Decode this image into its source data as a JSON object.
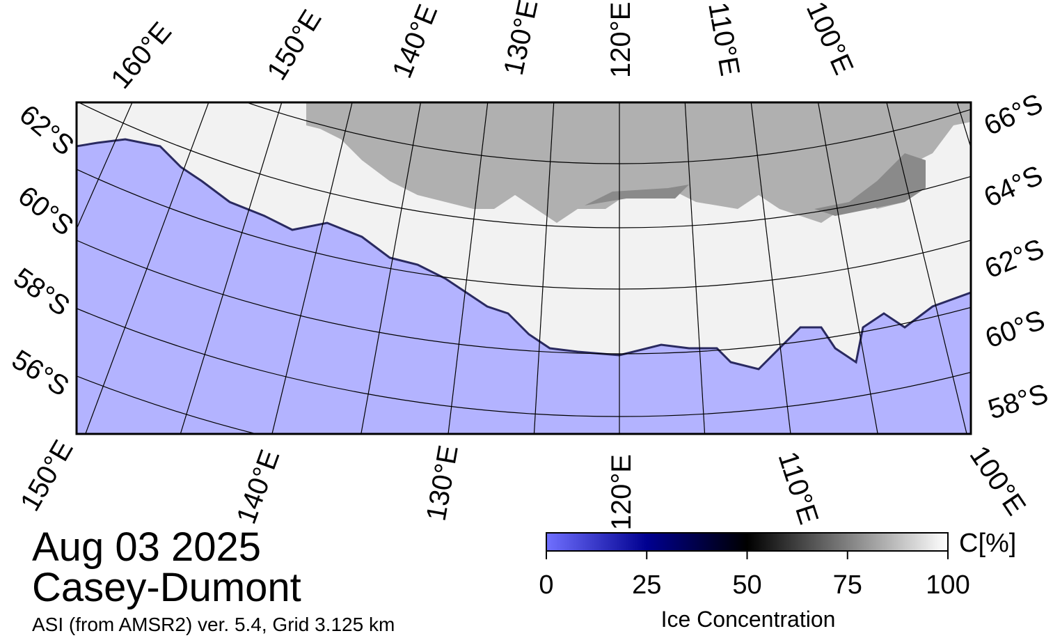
{
  "map": {
    "top_labels": [
      "160°E",
      "150°E",
      "140°E",
      "130°E",
      "120°E",
      "110°E",
      "100°E"
    ],
    "left_labels": [
      "62°S",
      "60°S",
      "58°S",
      "56°S"
    ],
    "right_labels": [
      "66°S",
      "64°S",
      "62°S",
      "60°S",
      "58°S"
    ],
    "bottom_labels": [
      "150°E",
      "140°E",
      "130°E",
      "120°E",
      "110°E",
      "100°E"
    ]
  },
  "date": "Aug 03 2025",
  "region": "Casey-Dumont",
  "source": "ASI (from AMSR2) ver. 5.4,  Grid 3.125 km",
  "colorbar": {
    "range": [
      0,
      100
    ],
    "ticks": [
      0,
      25,
      50,
      75,
      100
    ],
    "unit": "C[%]",
    "label": "Ice Concentration"
  }
}
